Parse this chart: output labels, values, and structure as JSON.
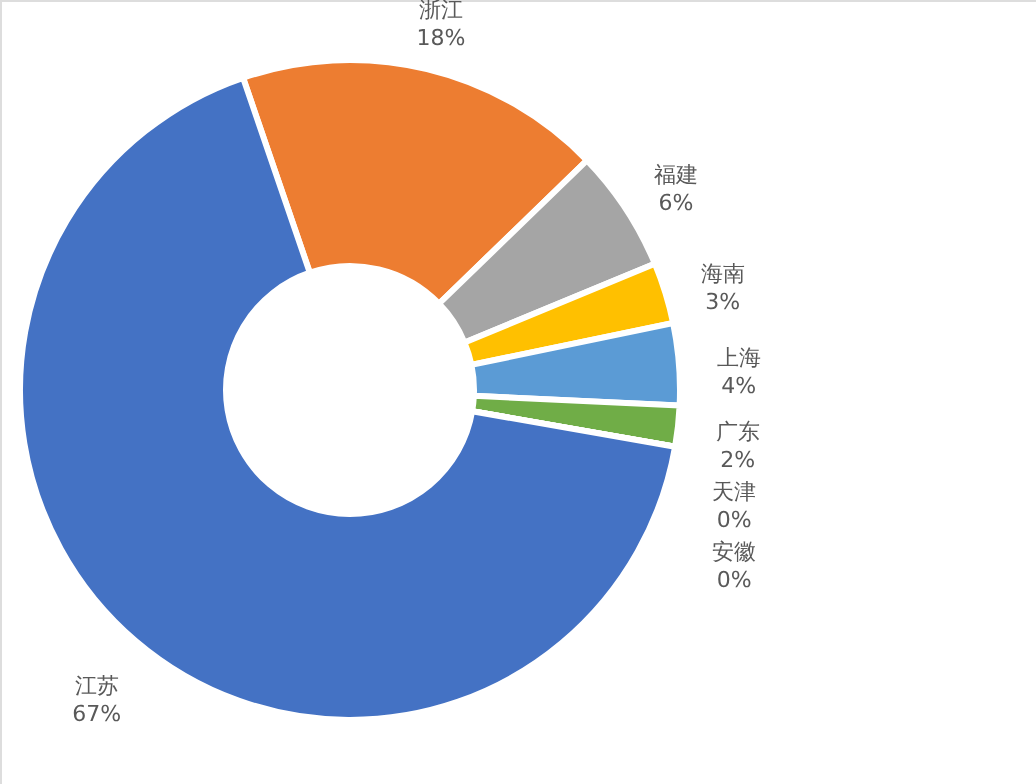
{
  "chart_data": {
    "type": "donut",
    "categories": [
      "浙江",
      "福建",
      "海南",
      "上海",
      "广东",
      "天津",
      "安徽",
      "江苏"
    ],
    "values": [
      18,
      6,
      3,
      4,
      2,
      0,
      0,
      67
    ],
    "colors": [
      "#ed7d31",
      "#a5a5a5",
      "#ffc000",
      "#5b9bd5",
      "#70ad47",
      "#264478",
      "#9e480e",
      "#4472c4"
    ],
    "value_labels": [
      "18%",
      "6%",
      "3%",
      "4%",
      "2%",
      "0%",
      "0%",
      "67%"
    ]
  }
}
